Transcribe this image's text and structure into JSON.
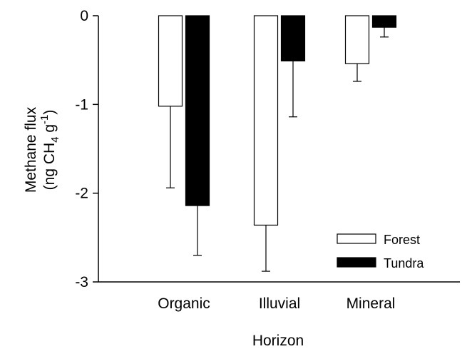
{
  "chart_data": {
    "type": "bar",
    "categories": [
      "Organic",
      "Illuvial",
      "Mineral"
    ],
    "series": [
      {
        "name": "Forest",
        "values": [
          -1.02,
          -2.36,
          -0.54
        ],
        "errors": [
          0.92,
          0.52,
          0.2
        ],
        "color": "#ffffff"
      },
      {
        "name": "Tundra",
        "values": [
          -2.14,
          -0.51,
          -0.13
        ],
        "errors": [
          0.56,
          0.63,
          0.11
        ],
        "color": "#000000"
      }
    ],
    "ylim": [
      -3,
      0
    ],
    "yticks": [
      "0",
      "-1",
      "-2",
      "-3"
    ],
    "xlabel": "Horizon",
    "ylabel_line1": "Methane flux",
    "ylabel_line2": {
      "pre": "(ng CH",
      "sub": "4",
      "mid": " g",
      "sup": "-1",
      "post": ")"
    },
    "legend_position": "bottom-right",
    "grid": false
  }
}
